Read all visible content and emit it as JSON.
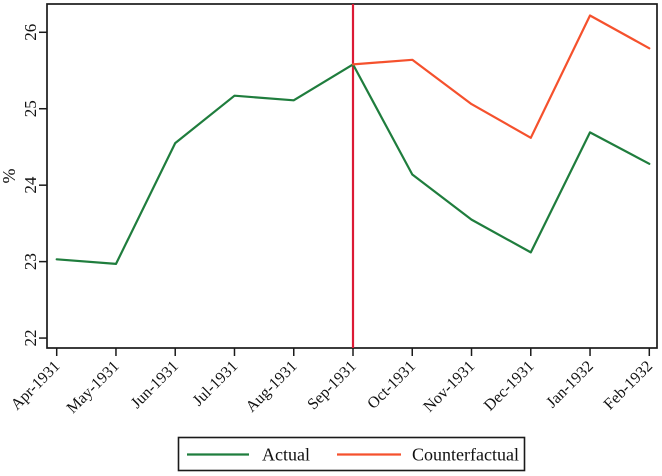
{
  "chart_data": {
    "type": "line",
    "title": "",
    "xlabel": "",
    "ylabel": "%",
    "categories": [
      "Apr-1931",
      "May-1931",
      "Jun-1931",
      "Jul-1931",
      "Aug-1931",
      "Sep-1931",
      "Oct-1931",
      "Nov-1931",
      "Dec-1931",
      "Jan-1932",
      "Feb-1932"
    ],
    "y_ticks": [
      22,
      23,
      24,
      25,
      26
    ],
    "ylim": [
      21.87,
      26.37
    ],
    "grid": false,
    "legend_position": "bottom-center-boxed",
    "series": [
      {
        "name": "Actual",
        "color": "#1f7d3d",
        "values": [
          23.03,
          22.97,
          24.55,
          25.17,
          25.11,
          25.58,
          24.14,
          23.55,
          23.12,
          24.69,
          24.28
        ]
      },
      {
        "name": "Counterfactual",
        "color": "#f5512d",
        "values": [
          null,
          null,
          null,
          null,
          null,
          25.58,
          25.64,
          25.06,
          24.62,
          26.22,
          25.79
        ]
      }
    ],
    "vline": {
      "at_category": "Sep-1931",
      "color": "#dc1a35"
    }
  },
  "legend": {
    "items": [
      {
        "label": "Actual",
        "color": "#1f7d3d"
      },
      {
        "label": "Counterfactual",
        "color": "#f5512d"
      }
    ]
  },
  "axes": {
    "y_label": "%",
    "y_tick_labels": [
      "22",
      "23",
      "24",
      "25",
      "26"
    ],
    "x_tick_labels": [
      "Apr-1931",
      "May-1931",
      "Jun-1931",
      "Jul-1931",
      "Aug-1931",
      "Sep-1931",
      "Oct-1931",
      "Nov-1931",
      "Dec-1931",
      "Jan-1932",
      "Feb-1932"
    ]
  },
  "colors": {
    "actual": "#1f7d3d",
    "counterfactual": "#f5512d",
    "event_line": "#dc1a35",
    "axis": "#1a1a1a"
  }
}
